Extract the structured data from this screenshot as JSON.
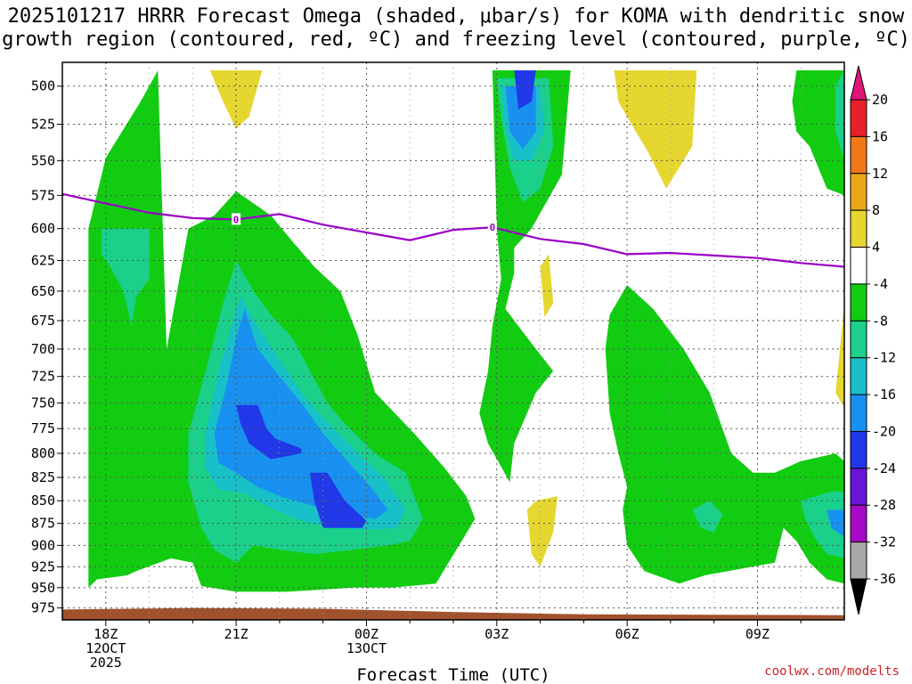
{
  "chart_data": {
    "type": "heatmap",
    "title_line1": "2025101217 HRRR Forecast Omega (shaded, μbar/s) for KOMA with dendritic snow",
    "title_line2": "growth region (contoured, red, ºC) and freezing level (contoured, purple, ºC)",
    "xlabel": "Forecast Time (UTC)",
    "credit": "coolwx.com/modelts",
    "x_ticks": [
      {
        "hour": 18,
        "lines": [
          "18Z",
          "12OCT",
          "2025"
        ]
      },
      {
        "hour": 21,
        "lines": [
          "21Z"
        ]
      },
      {
        "hour": 24,
        "lines": [
          "00Z",
          "13OCT"
        ]
      },
      {
        "hour": 27,
        "lines": [
          "03Z"
        ]
      },
      {
        "hour": 30,
        "lines": [
          "06Z"
        ]
      },
      {
        "hour": 33,
        "lines": [
          "09Z"
        ]
      }
    ],
    "xlim": [
      17,
      35
    ],
    "y_levels": [
      "500",
      "525",
      "550",
      "575",
      "600",
      "625",
      "650",
      "675",
      "700",
      "725",
      "750",
      "775",
      "800",
      "825",
      "850",
      "875",
      "900",
      "925",
      "950",
      "975"
    ],
    "ylim": [
      485,
      990
    ],
    "colorbar": {
      "levels": [
        "20",
        "16",
        "12",
        "8",
        "4",
        "-4",
        "-8",
        "-12",
        "-16",
        "-20",
        "-24",
        "-28",
        "-32",
        "-36"
      ],
      "bins": [
        {
          "lo": 20,
          "hi": 24,
          "color": "#e0157a"
        },
        {
          "lo": 16,
          "hi": 20,
          "color": "#e8202a"
        },
        {
          "lo": 12,
          "hi": 16,
          "color": "#f07818"
        },
        {
          "lo": 8,
          "hi": 12,
          "color": "#e8a818"
        },
        {
          "lo": 4,
          "hi": 8,
          "color": "#e6d630"
        },
        {
          "lo": -4,
          "hi": 4,
          "color": "#ffffff"
        },
        {
          "lo": -8,
          "hi": -4,
          "color": "#12cc12"
        },
        {
          "lo": -12,
          "hi": -8,
          "color": "#1ad08a"
        },
        {
          "lo": -16,
          "hi": -12,
          "color": "#18c0c8"
        },
        {
          "lo": -20,
          "hi": -16,
          "color": "#1890f0"
        },
        {
          "lo": -24,
          "hi": -20,
          "color": "#2038e8"
        },
        {
          "lo": -28,
          "hi": -24,
          "color": "#6a14d8"
        },
        {
          "lo": -32,
          "hi": -28,
          "color": "#a808c8"
        },
        {
          "lo": -36,
          "hi": -32,
          "color": "#a8a8a8"
        },
        {
          "lo": -40,
          "hi": -36,
          "color": "#000000"
        }
      ]
    },
    "freezing_level": {
      "label": "0",
      "label_points": [
        {
          "hour": 21.0,
          "p": 593
        },
        {
          "hour": 26.9,
          "p": 599
        }
      ],
      "points": [
        {
          "hour": 17.0,
          "p": 574
        },
        {
          "hour": 18.0,
          "p": 581
        },
        {
          "hour": 19.0,
          "p": 588
        },
        {
          "hour": 20.0,
          "p": 592
        },
        {
          "hour": 21.0,
          "p": 593
        },
        {
          "hour": 22.0,
          "p": 589
        },
        {
          "hour": 23.0,
          "p": 597
        },
        {
          "hour": 24.0,
          "p": 603
        },
        {
          "hour": 25.0,
          "p": 609
        },
        {
          "hour": 26.0,
          "p": 601
        },
        {
          "hour": 26.9,
          "p": 599
        },
        {
          "hour": 28.0,
          "p": 608
        },
        {
          "hour": 29.0,
          "p": 612
        },
        {
          "hour": 30.0,
          "p": 620
        },
        {
          "hour": 31.0,
          "p": 619
        },
        {
          "hour": 32.0,
          "p": 621
        },
        {
          "hour": 33.0,
          "p": 623
        },
        {
          "hour": 34.0,
          "p": 627
        },
        {
          "hour": 35.0,
          "p": 630
        }
      ]
    },
    "regions": [
      {
        "value": -6,
        "points": [
          [
            17.6,
            950
          ],
          [
            17.6,
            600
          ],
          [
            18.0,
            548
          ],
          [
            18.8,
            510
          ],
          [
            19.2,
            490
          ],
          [
            19.4,
            700
          ],
          [
            19.9,
            600
          ],
          [
            20.5,
            590
          ],
          [
            21.0,
            572
          ],
          [
            21.8,
            590
          ],
          [
            22.3,
            610
          ],
          [
            22.8,
            630
          ],
          [
            23.4,
            650
          ],
          [
            23.8,
            688
          ],
          [
            24.2,
            740
          ],
          [
            25.1,
            780
          ],
          [
            25.8,
            815
          ],
          [
            26.3,
            845
          ],
          [
            26.5,
            870
          ],
          [
            25.6,
            945
          ],
          [
            24.6,
            950
          ],
          [
            23.7,
            950
          ],
          [
            22.2,
            955
          ],
          [
            21.0,
            955
          ],
          [
            20.2,
            948
          ],
          [
            20.0,
            920
          ],
          [
            19.5,
            915
          ],
          [
            18.7,
            930
          ],
          [
            18.5,
            935
          ],
          [
            17.8,
            940
          ]
        ]
      },
      {
        "value": -6,
        "points": [
          [
            26.9,
            490
          ],
          [
            28.7,
            490
          ],
          [
            28.5,
            560
          ],
          [
            27.8,
            600
          ],
          [
            27.4,
            615
          ],
          [
            27.4,
            635
          ],
          [
            27.2,
            665
          ],
          [
            27.9,
            700
          ],
          [
            28.3,
            720
          ],
          [
            27.9,
            740
          ],
          [
            27.4,
            790
          ],
          [
            27.3,
            830
          ],
          [
            26.8,
            790
          ],
          [
            26.6,
            760
          ],
          [
            26.8,
            720
          ],
          [
            26.9,
            680
          ],
          [
            27.1,
            640
          ],
          [
            27.0,
            600
          ]
        ]
      },
      {
        "value": -6,
        "points": [
          [
            29.5,
            700
          ],
          [
            29.6,
            670
          ],
          [
            30.0,
            645
          ],
          [
            30.6,
            665
          ],
          [
            31.3,
            700
          ],
          [
            31.9,
            740
          ],
          [
            32.4,
            800
          ],
          [
            32.9,
            820
          ],
          [
            33.4,
            820
          ],
          [
            34.0,
            808
          ],
          [
            34.8,
            800
          ],
          [
            35.0,
            808
          ],
          [
            35.0,
            945
          ],
          [
            34.6,
            940
          ],
          [
            34.2,
            920
          ],
          [
            33.9,
            895
          ],
          [
            33.6,
            880
          ],
          [
            33.4,
            920
          ],
          [
            31.8,
            935
          ],
          [
            31.2,
            945
          ],
          [
            30.4,
            930
          ],
          [
            30.0,
            900
          ],
          [
            29.9,
            860
          ],
          [
            30.0,
            835
          ],
          [
            29.8,
            800
          ],
          [
            29.6,
            760
          ]
        ]
      },
      {
        "value": -6,
        "points": [
          [
            33.9,
            490
          ],
          [
            35.0,
            490
          ],
          [
            35.0,
            575
          ],
          [
            34.6,
            570
          ],
          [
            34.2,
            540
          ],
          [
            33.9,
            530
          ],
          [
            33.8,
            510
          ]
        ]
      },
      {
        "value": -10,
        "points": [
          [
            17.9,
            600
          ],
          [
            19.0,
            600
          ],
          [
            19.0,
            640
          ],
          [
            18.7,
            655
          ],
          [
            18.6,
            680
          ],
          [
            18.4,
            650
          ],
          [
            18.1,
            630
          ],
          [
            17.9,
            620
          ]
        ]
      },
      {
        "value": -10,
        "points": [
          [
            19.9,
            780
          ],
          [
            20.3,
            720
          ],
          [
            20.7,
            660
          ],
          [
            21.0,
            625
          ],
          [
            21.4,
            650
          ],
          [
            21.8,
            670
          ],
          [
            22.3,
            690
          ],
          [
            22.7,
            720
          ],
          [
            23.1,
            750
          ],
          [
            23.5,
            770
          ],
          [
            24.2,
            800
          ],
          [
            24.9,
            820
          ],
          [
            25.3,
            870
          ],
          [
            25.0,
            895
          ],
          [
            24.5,
            900
          ],
          [
            23.7,
            905
          ],
          [
            22.8,
            910
          ],
          [
            22.0,
            905
          ],
          [
            21.4,
            900
          ],
          [
            21.0,
            920
          ],
          [
            20.5,
            905
          ],
          [
            20.2,
            880
          ],
          [
            19.9,
            830
          ]
        ]
      },
      {
        "value": -10,
        "points": [
          [
            27.0,
            495
          ],
          [
            28.2,
            495
          ],
          [
            28.3,
            540
          ],
          [
            28.0,
            570
          ],
          [
            27.6,
            580
          ],
          [
            27.3,
            555
          ],
          [
            27.1,
            520
          ]
        ]
      },
      {
        "value": -10,
        "points": [
          [
            34.0,
            850
          ],
          [
            34.7,
            840
          ],
          [
            35.0,
            840
          ],
          [
            35.0,
            915
          ],
          [
            34.6,
            910
          ],
          [
            34.3,
            890
          ],
          [
            34.1,
            870
          ]
        ]
      },
      {
        "value": -10,
        "points": [
          [
            31.5,
            860
          ],
          [
            31.9,
            850
          ],
          [
            32.2,
            865
          ],
          [
            32.0,
            885
          ],
          [
            31.7,
            880
          ]
        ]
      },
      {
        "value": -10,
        "points": [
          [
            34.8,
            500
          ],
          [
            35.0,
            490
          ],
          [
            35.0,
            550
          ],
          [
            34.8,
            530
          ]
        ]
      },
      {
        "value": -14,
        "points": [
          [
            20.3,
            780
          ],
          [
            20.6,
            720
          ],
          [
            20.9,
            680
          ],
          [
            21.1,
            655
          ],
          [
            21.5,
            680
          ],
          [
            22.0,
            710
          ],
          [
            22.5,
            740
          ],
          [
            23.0,
            765
          ],
          [
            23.8,
            800
          ],
          [
            24.4,
            825
          ],
          [
            24.9,
            860
          ],
          [
            24.7,
            880
          ],
          [
            24.0,
            882
          ],
          [
            23.3,
            880
          ],
          [
            22.5,
            872
          ],
          [
            21.8,
            858
          ],
          [
            21.2,
            842
          ],
          [
            20.6,
            838
          ],
          [
            20.3,
            815
          ]
        ]
      },
      {
        "value": -14,
        "points": [
          [
            27.1,
            500
          ],
          [
            28.0,
            500
          ],
          [
            28.1,
            530
          ],
          [
            27.8,
            550
          ],
          [
            27.4,
            550
          ],
          [
            27.2,
            530
          ]
        ]
      },
      {
        "value": -18,
        "points": [
          [
            20.5,
            780
          ],
          [
            20.8,
            730
          ],
          [
            21.0,
            690
          ],
          [
            21.2,
            665
          ],
          [
            21.5,
            700
          ],
          [
            22.0,
            725
          ],
          [
            22.5,
            750
          ],
          [
            23.0,
            780
          ],
          [
            23.6,
            810
          ],
          [
            24.1,
            835
          ],
          [
            24.5,
            860
          ],
          [
            24.2,
            870
          ],
          [
            23.5,
            865
          ],
          [
            22.8,
            856
          ],
          [
            22.0,
            845
          ],
          [
            21.5,
            835
          ],
          [
            21.0,
            820
          ],
          [
            20.6,
            810
          ]
        ]
      },
      {
        "value": -18,
        "points": [
          [
            27.2,
            500
          ],
          [
            27.9,
            500
          ],
          [
            27.9,
            530
          ],
          [
            27.6,
            542
          ],
          [
            27.3,
            530
          ]
        ]
      },
      {
        "value": -18,
        "points": [
          [
            34.6,
            860
          ],
          [
            35.0,
            860
          ],
          [
            35.0,
            890
          ],
          [
            34.7,
            880
          ]
        ]
      },
      {
        "value": -22,
        "points": [
          [
            21.0,
            752
          ],
          [
            21.5,
            752
          ],
          [
            21.7,
            775
          ],
          [
            21.9,
            785
          ],
          [
            22.5,
            795
          ],
          [
            22.5,
            800
          ],
          [
            21.8,
            806
          ],
          [
            21.3,
            790
          ],
          [
            21.1,
            770
          ]
        ]
      },
      {
        "value": -22,
        "points": [
          [
            22.7,
            820
          ],
          [
            23.1,
            820
          ],
          [
            23.5,
            850
          ],
          [
            24.0,
            872
          ],
          [
            23.9,
            880
          ],
          [
            23.0,
            880
          ],
          [
            22.8,
            850
          ]
        ]
      },
      {
        "value": -22,
        "points": [
          [
            27.4,
            490
          ],
          [
            27.9,
            490
          ],
          [
            27.8,
            510
          ],
          [
            27.5,
            515
          ]
        ]
      },
      {
        "value": 6,
        "points": [
          [
            20.4,
            490
          ],
          [
            21.6,
            490
          ],
          [
            21.3,
            520
          ],
          [
            21.0,
            528
          ],
          [
            20.7,
            510
          ]
        ]
      },
      {
        "value": 6,
        "points": [
          [
            29.7,
            490
          ],
          [
            31.6,
            490
          ],
          [
            31.5,
            540
          ],
          [
            30.9,
            570
          ],
          [
            30.5,
            545
          ],
          [
            30.1,
            525
          ],
          [
            29.8,
            510
          ]
        ]
      },
      {
        "value": 6,
        "points": [
          [
            28.0,
            630
          ],
          [
            28.2,
            620
          ],
          [
            28.3,
            660
          ],
          [
            28.1,
            672
          ]
        ]
      },
      {
        "value": 6,
        "points": [
          [
            27.7,
            860
          ],
          [
            27.9,
            850
          ],
          [
            28.4,
            845
          ],
          [
            28.3,
            885
          ],
          [
            28.0,
            925
          ],
          [
            27.8,
            910
          ]
        ]
      },
      {
        "value": 6,
        "points": [
          [
            34.9,
            700
          ],
          [
            35.0,
            660
          ],
          [
            35.0,
            755
          ],
          [
            34.8,
            740
          ]
        ]
      }
    ]
  }
}
